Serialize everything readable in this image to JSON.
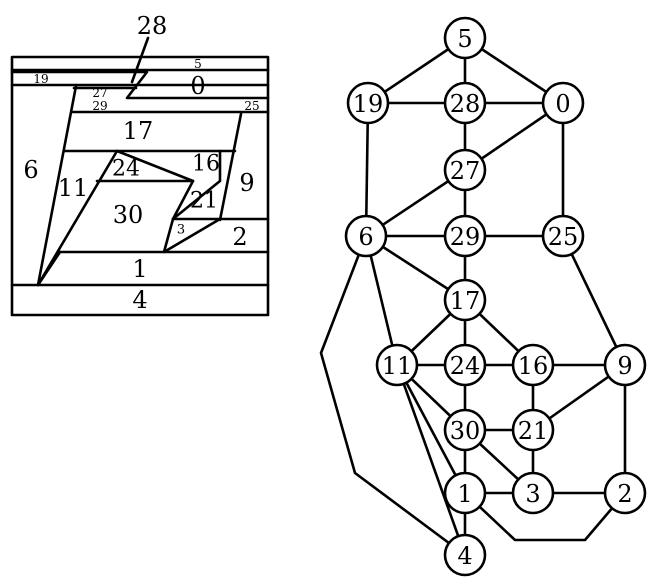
{
  "partition": {
    "regions": [
      {
        "id": "r28",
        "label": "28"
      },
      {
        "id": "r5",
        "label": "5"
      },
      {
        "id": "r0",
        "label": "0"
      },
      {
        "id": "r19",
        "label": "19"
      },
      {
        "id": "r27",
        "label": "27"
      },
      {
        "id": "r29",
        "label": "29"
      },
      {
        "id": "r25",
        "label": "25"
      },
      {
        "id": "r17",
        "label": "17"
      },
      {
        "id": "r6",
        "label": "6"
      },
      {
        "id": "r24",
        "label": "24"
      },
      {
        "id": "r16",
        "label": "16"
      },
      {
        "id": "r11",
        "label": "11"
      },
      {
        "id": "r9",
        "label": "9"
      },
      {
        "id": "r30",
        "label": "30"
      },
      {
        "id": "r21",
        "label": "21"
      },
      {
        "id": "r3",
        "label": "3"
      },
      {
        "id": "r2",
        "label": "2"
      },
      {
        "id": "r1",
        "label": "1"
      },
      {
        "id": "r4",
        "label": "4"
      }
    ]
  },
  "graph": {
    "nodes": [
      {
        "id": "5",
        "label": "5"
      },
      {
        "id": "19",
        "label": "19"
      },
      {
        "id": "28",
        "label": "28"
      },
      {
        "id": "0",
        "label": "0"
      },
      {
        "id": "27",
        "label": "27"
      },
      {
        "id": "6",
        "label": "6"
      },
      {
        "id": "29",
        "label": "29"
      },
      {
        "id": "25",
        "label": "25"
      },
      {
        "id": "17",
        "label": "17"
      },
      {
        "id": "11",
        "label": "11"
      },
      {
        "id": "24",
        "label": "24"
      },
      {
        "id": "16",
        "label": "16"
      },
      {
        "id": "9",
        "label": "9"
      },
      {
        "id": "30",
        "label": "30"
      },
      {
        "id": "21",
        "label": "21"
      },
      {
        "id": "1",
        "label": "1"
      },
      {
        "id": "3",
        "label": "3"
      },
      {
        "id": "2",
        "label": "2"
      },
      {
        "id": "4",
        "label": "4"
      }
    ],
    "edges": [
      [
        "5",
        "19"
      ],
      [
        "5",
        "28"
      ],
      [
        "5",
        "0"
      ],
      [
        "19",
        "28"
      ],
      [
        "28",
        "0"
      ],
      [
        "19",
        "6"
      ],
      [
        "28",
        "27"
      ],
      [
        "0",
        "27"
      ],
      [
        "0",
        "25"
      ],
      [
        "27",
        "29"
      ],
      [
        "27",
        "6"
      ],
      [
        "6",
        "29"
      ],
      [
        "29",
        "25"
      ],
      [
        "6",
        "17"
      ],
      [
        "6",
        "11"
      ],
      [
        "6",
        "4"
      ],
      [
        "29",
        "17"
      ],
      [
        "25",
        "9"
      ],
      [
        "17",
        "11"
      ],
      [
        "17",
        "24"
      ],
      [
        "17",
        "16"
      ],
      [
        "11",
        "24"
      ],
      [
        "24",
        "16"
      ],
      [
        "16",
        "9"
      ],
      [
        "24",
        "30"
      ],
      [
        "11",
        "30"
      ],
      [
        "11",
        "1"
      ],
      [
        "11",
        "4"
      ],
      [
        "16",
        "21"
      ],
      [
        "9",
        "21"
      ],
      [
        "9",
        "2"
      ],
      [
        "30",
        "21"
      ],
      [
        "30",
        "1"
      ],
      [
        "30",
        "3"
      ],
      [
        "21",
        "3"
      ],
      [
        "1",
        "3"
      ],
      [
        "3",
        "2"
      ],
      [
        "1",
        "4"
      ],
      [
        "1",
        "2"
      ]
    ]
  }
}
